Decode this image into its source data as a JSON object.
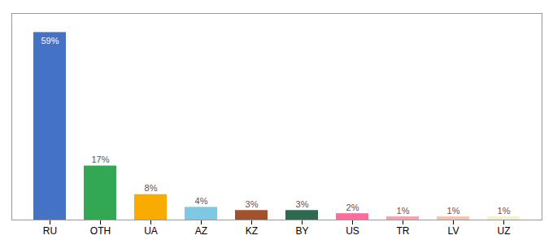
{
  "chart_data": {
    "type": "bar",
    "categories": [
      "RU",
      "OTH",
      "UA",
      "AZ",
      "KZ",
      "BY",
      "US",
      "TR",
      "LV",
      "UZ"
    ],
    "values": [
      59,
      17,
      8,
      4,
      3,
      3,
      2,
      1,
      1,
      1
    ],
    "value_labels": [
      "59%",
      "17%",
      "8%",
      "4%",
      "3%",
      "3%",
      "2%",
      "1%",
      "1%",
      "1%"
    ],
    "colors": [
      "#4472C4",
      "#33A853",
      "#F9AB00",
      "#7EC8E3",
      "#A0522D",
      "#2D6A4F",
      "#FF6B9D",
      "#F4A4B0",
      "#F4C2B0",
      "#F5F0D0"
    ],
    "ylim": [
      0,
      65
    ],
    "data_labels": true,
    "tick_labels": "x",
    "grid": false
  }
}
